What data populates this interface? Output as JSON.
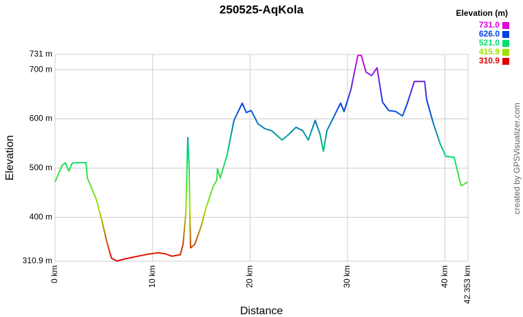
{
  "chart_data": {
    "type": "line",
    "title": "250525-AqKola",
    "x_label": "Distance",
    "y_label": "Elevation",
    "credit": "created by GPSVisualizer.com",
    "legend_title": "Elevation (m)",
    "color_scale": [
      {
        "value": 731,
        "label": "731.0",
        "color": "#e000e0"
      },
      {
        "value": 626,
        "label": "626.0",
        "color": "#0040e0"
      },
      {
        "value": 521,
        "label": "521.0",
        "color": "#00e070"
      },
      {
        "value": 415.9,
        "label": "415.9",
        "color": "#a0e000"
      },
      {
        "value": 310.9,
        "label": "310.9",
        "color": "#e00000"
      }
    ],
    "x": [
      0,
      0.71,
      1.06,
      1.41,
      1.76,
      2.12,
      3.18,
      3.32,
      4.24,
      4.8,
      5.29,
      5.79,
      6.35,
      7.06,
      7.77,
      8.47,
      9.53,
      10.59,
      11.29,
      12.0,
      12.85,
      13.13,
      13.41,
      13.62,
      13.76,
      13.9,
      14.33,
      14.96,
      15.53,
      16.24,
      16.59,
      16.66,
      16.94,
      17.65,
      18.35,
      19.2,
      19.62,
      20.12,
      20.82,
      21.53,
      22.23,
      23.29,
      24.0,
      24.71,
      25.41,
      25.98,
      26.68,
      27.18,
      27.53,
      27.88,
      28.59,
      29.29,
      29.65,
      30.35,
      31.06,
      31.41,
      31.9,
      32.47,
      33.03,
      33.59,
      34.23,
      34.94,
      35.64,
      36.14,
      36.85,
      37.91,
      38.12,
      38.82,
      39.53,
      40.09,
      40.94,
      41.65,
      42.35
    ],
    "values": [
      472,
      505,
      511,
      494,
      510,
      511,
      511,
      480,
      436,
      394,
      352,
      317,
      311,
      315,
      318,
      321,
      325,
      328,
      326,
      321,
      324,
      345,
      408,
      562,
      499,
      338,
      345,
      380,
      422,
      464,
      475,
      499,
      480,
      527,
      597,
      632,
      613,
      617,
      590,
      580,
      576,
      557,
      569,
      583,
      576,
      557,
      597,
      569,
      534,
      576,
      604,
      632,
      615,
      660,
      729,
      729,
      695,
      688,
      704,
      634,
      617,
      615,
      606,
      632,
      676,
      676,
      639,
      590,
      548,
      524,
      522,
      464,
      472
    ],
    "xlim": [
      0,
      42.353
    ],
    "ylim": [
      310.9,
      731
    ],
    "xticks": [
      {
        "value": 0,
        "label": "0 km"
      },
      {
        "value": 10,
        "label": "10 km"
      },
      {
        "value": 20,
        "label": "20 km"
      },
      {
        "value": 30,
        "label": "30 km"
      },
      {
        "value": 40,
        "label": "40 km"
      },
      {
        "value": 42.353,
        "label": "42.353 km"
      }
    ],
    "yticks": [
      {
        "value": 310.9,
        "label": "310.9 m"
      },
      {
        "value": 400,
        "label": "400 m"
      },
      {
        "value": 500,
        "label": "500 m"
      },
      {
        "value": 600,
        "label": "600 m"
      },
      {
        "value": 700,
        "label": "700 m"
      },
      {
        "value": 731,
        "label": "731 m"
      }
    ],
    "grid": true
  }
}
